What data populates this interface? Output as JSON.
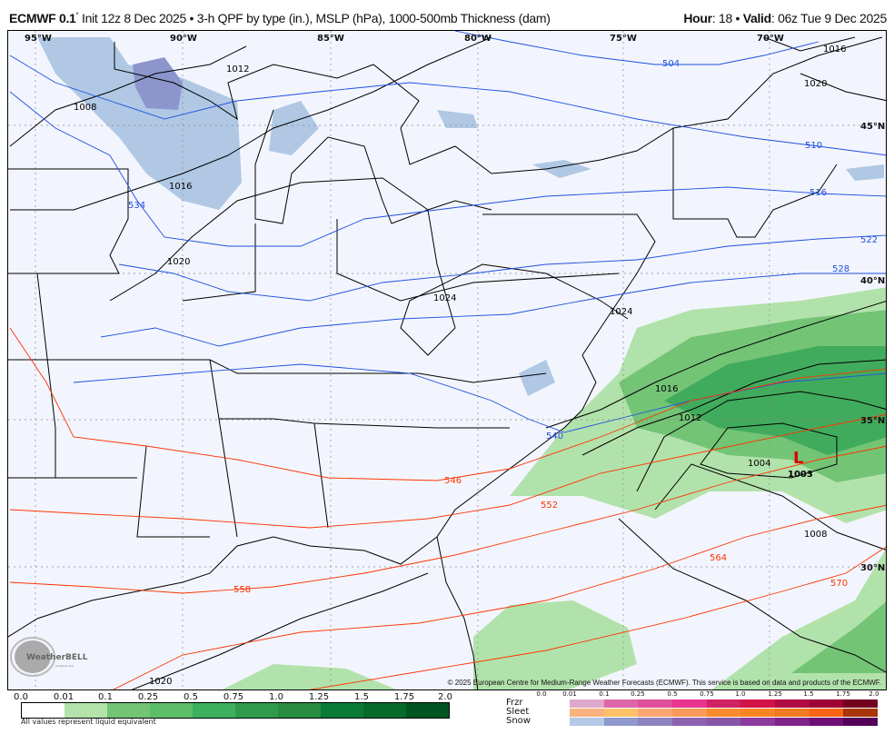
{
  "header": {
    "model": "ECMWF 0.1",
    "degree": "°",
    "description": " Init 12z 8 Dec 2025 • 3-h QPF by type (in.), MSLP (hPa), 1000-500mb Thickness (dam)",
    "hour_label": "Hour",
    "hour_value": ": 18 • ",
    "valid_label": "Valid",
    "valid_value": ": 06z Tue 9 Dec 2025"
  },
  "map": {
    "longitudes": [
      "95°W",
      "90°W",
      "85°W",
      "80°W",
      "75°W",
      "70°W"
    ],
    "latitudes": [
      "45°N",
      "40°N",
      "35°N",
      "30°N"
    ],
    "isobar_labels": [
      "1008",
      "1012",
      "1016",
      "1020",
      "1024",
      "1024",
      "1016",
      "1012",
      "1004",
      "1008",
      "1020",
      "1016",
      "1020"
    ],
    "thickness_labels_blue": [
      "504",
      "510",
      "516",
      "522",
      "528",
      "534",
      "540"
    ],
    "thickness_labels_red": [
      "546",
      "552",
      "558",
      "564",
      "570"
    ],
    "low_center": {
      "symbol": "L",
      "pressure": "1003",
      "color": "#e00000"
    },
    "logo_text": "WeatherBELL",
    "logo_subtext": "Analytics LLC",
    "copyright": "© 2025 European Centre for Medium-Range Weather Forecasts (ECMWF). This service is based on data and products of the ECMWF."
  },
  "colors": {
    "background": "#f2f5fd",
    "isobar": "#000000",
    "thickness_cold": "#1f4fe0",
    "thickness_warm": "#ff3300",
    "rain_light": "#b2e2ab",
    "rain_mid": "#74c476",
    "rain_heavy": "#41ab5d",
    "snow_light": "#b0c8e4",
    "snow_mid": "#8c96cc"
  },
  "legend": {
    "qpf_ticks": [
      "0.0",
      "0.01",
      "0.1",
      "0.25",
      "0.5",
      "0.75",
      "1.0",
      "1.25",
      "1.5",
      "1.75",
      "2.0"
    ],
    "qpf_colors": [
      "#ffffff",
      "#b3e3ab",
      "#74c476",
      "#5cbf68",
      "#3daf5d",
      "#2f9a4e",
      "#288c41",
      "#0a7a36",
      "#066b2a",
      "#005420"
    ],
    "note": "All values represent liquid equivalent",
    "ptype_ticks": [
      "0.0",
      "0.01",
      "0.1",
      "0.25",
      "0.5",
      "0.75",
      "1.0",
      "1.25",
      "1.5",
      "1.75",
      "2.0"
    ],
    "ptype_labels": [
      "Frzr",
      "Sleet",
      "Snow"
    ],
    "frzr_colors": [
      "#dea8cc",
      "#dd66aa",
      "#e0509a",
      "#e83590",
      "#cf2262",
      "#d4124a",
      "#b00a44",
      "#9e0036",
      "#74001f"
    ],
    "sleet_colors": [
      "#fbb27e",
      "#fdc16a",
      "#fba774",
      "#f99a59",
      "#fb8a2e",
      "#fb8522",
      "#f27a20",
      "#fb6515",
      "#a83608"
    ],
    "snow_colors": [
      "#b3c9e4",
      "#9099cb",
      "#8d84bd",
      "#8c62b0",
      "#8656a6",
      "#8b3a9f",
      "#7e2388",
      "#6e0f76",
      "#52005a"
    ]
  }
}
